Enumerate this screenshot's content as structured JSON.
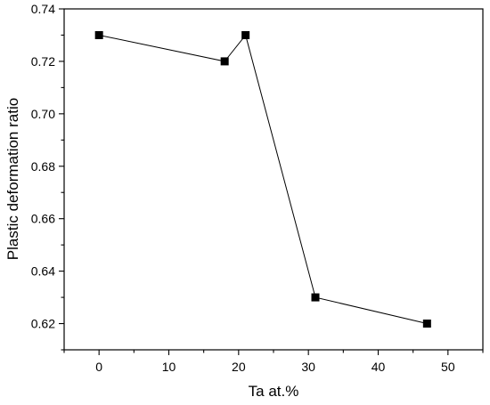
{
  "chart_data": {
    "type": "line",
    "title": "",
    "xlabel": "Ta at.%",
    "ylabel": "Plastic deformation ratio",
    "xlim": [
      -5,
      55
    ],
    "ylim": [
      0.61,
      0.74
    ],
    "x_ticks": [
      0,
      10,
      20,
      30,
      40,
      50
    ],
    "y_ticks": [
      0.62,
      0.64,
      0.66,
      0.68,
      0.7,
      0.72,
      0.74
    ],
    "x_tick_labels": [
      "0",
      "10",
      "20",
      "30",
      "40",
      "50"
    ],
    "y_tick_labels": [
      "0.62",
      "0.64",
      "0.66",
      "0.68",
      "0.70",
      "0.72",
      "0.74"
    ],
    "grid": false,
    "legend": "none",
    "marker": "square",
    "colors": {
      "line": "#000000",
      "marker": "#000000",
      "axes": "#000000"
    },
    "series": [
      {
        "x": [
          0,
          18,
          21,
          31,
          47
        ],
        "y": [
          0.73,
          0.72,
          0.73,
          0.63,
          0.62
        ]
      }
    ]
  }
}
